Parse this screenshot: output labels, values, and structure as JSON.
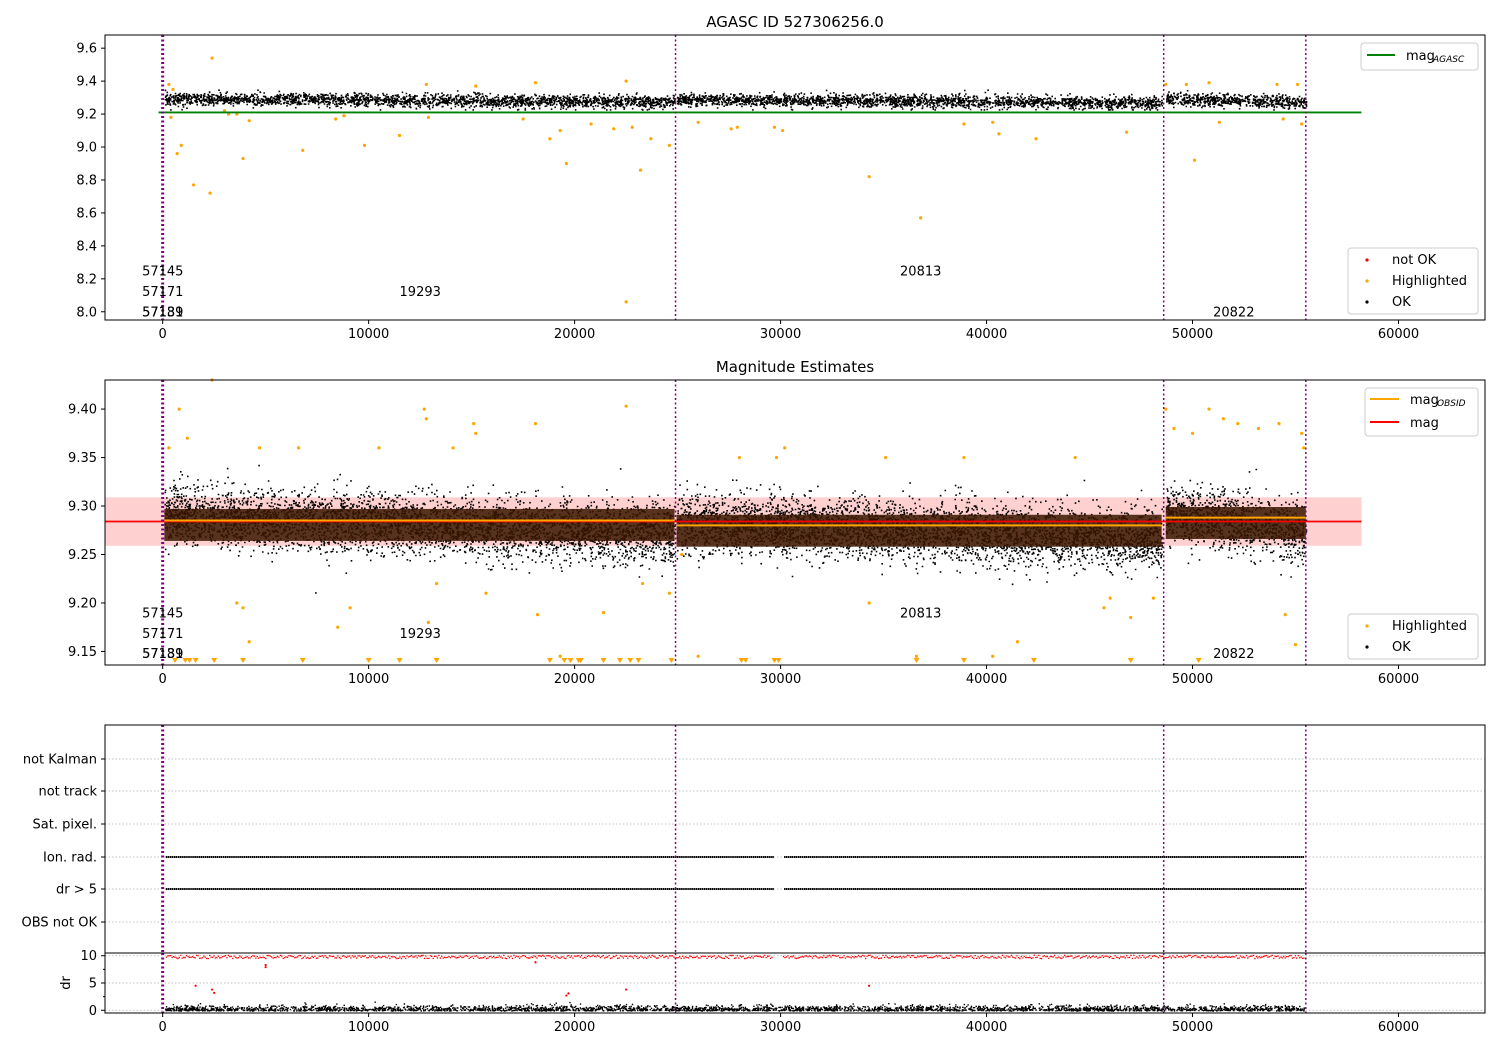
{
  "chart_data": [
    {
      "type": "scatter",
      "title": "AGASC ID 527306256.0",
      "xlabel": "",
      "ylabel": "",
      "xlim": [
        -2800,
        64200
      ],
      "ylim": [
        7.95,
        9.68
      ],
      "grid": false,
      "x_ticks": [
        "0",
        "10000",
        "20000",
        "30000",
        "40000",
        "50000",
        "60000"
      ],
      "x_tick_values": [
        0,
        10000,
        20000,
        30000,
        40000,
        50000,
        60000
      ],
      "y_ticks": [
        "8.0",
        "8.2",
        "8.4",
        "8.6",
        "8.8",
        "9.0",
        "9.2",
        "9.4",
        "9.6"
      ],
      "y_tick_values": [
        8.0,
        8.2,
        8.4,
        8.6,
        8.8,
        9.0,
        9.2,
        9.4,
        9.6
      ],
      "obs_boundaries": [
        0,
        24900,
        48600,
        55500
      ],
      "segments": [
        {
          "x0": 80,
          "x1": 24850,
          "center": 9.29,
          "spread": 0.035
        },
        {
          "x0": 24950,
          "x1": 48500,
          "center": 9.285,
          "spread": 0.035
        },
        {
          "x0": 48700,
          "x1": 55500,
          "center": 9.29,
          "spread": 0.035
        }
      ],
      "series": [
        {
          "name": "mag_AGASC",
          "kind": "line",
          "color": "#008000",
          "y": 9.21,
          "x_range": [
            -200,
            58200
          ]
        },
        {
          "name": "not OK",
          "kind": "points",
          "color": "#ff0000",
          "points": []
        },
        {
          "name": "Highlighted",
          "kind": "points",
          "color": "#ffa500",
          "points": [
            [
              300,
              9.38
            ],
            [
              400,
              9.18
            ],
            [
              500,
              9.35
            ],
            [
              700,
              8.96
            ],
            [
              900,
              9.01
            ],
            [
              1500,
              8.77
            ],
            [
              2300,
              8.72
            ],
            [
              2400,
              9.54
            ],
            [
              3000,
              9.22
            ],
            [
              3200,
              9.2
            ],
            [
              3600,
              9.2
            ],
            [
              3900,
              8.93
            ],
            [
              4200,
              9.16
            ],
            [
              6800,
              8.98
            ],
            [
              8400,
              9.17
            ],
            [
              8800,
              9.19
            ],
            [
              9800,
              9.01
            ],
            [
              11500,
              9.07
            ],
            [
              12800,
              9.38
            ],
            [
              12900,
              9.18
            ],
            [
              15200,
              9.37
            ],
            [
              17500,
              9.17
            ],
            [
              18100,
              9.39
            ],
            [
              18800,
              9.05
            ],
            [
              19300,
              9.1
            ],
            [
              19600,
              8.9
            ],
            [
              20800,
              9.14
            ],
            [
              21900,
              9.11
            ],
            [
              22500,
              9.4
            ],
            [
              22800,
              9.12
            ],
            [
              23200,
              8.86
            ],
            [
              23700,
              9.05
            ],
            [
              24600,
              9.01
            ],
            [
              26000,
              9.15
            ],
            [
              27600,
              9.11
            ],
            [
              27900,
              9.12
            ],
            [
              29700,
              9.12
            ],
            [
              30100,
              9.1
            ],
            [
              34300,
              8.82
            ],
            [
              36800,
              8.57
            ],
            [
              38900,
              9.14
            ],
            [
              40300,
              9.15
            ],
            [
              40600,
              9.08
            ],
            [
              42400,
              9.05
            ],
            [
              46800,
              9.09
            ],
            [
              48700,
              9.38
            ],
            [
              49700,
              9.38
            ],
            [
              50800,
              9.39
            ],
            [
              50100,
              8.92
            ],
            [
              51300,
              9.15
            ],
            [
              54100,
              9.38
            ],
            [
              54400,
              9.17
            ],
            [
              55100,
              9.38
            ],
            [
              55300,
              9.14
            ],
            [
              22500,
              8.06
            ]
          ]
        },
        {
          "name": "OK",
          "kind": "points",
          "color": "#000000",
          "points": []
        }
      ],
      "legend_lines": [
        {
          "label_main": "mag",
          "label_sub": "AGASC",
          "color": "#008000"
        }
      ],
      "legend_points": [
        {
          "label": "not OK",
          "color": "#ff0000"
        },
        {
          "label": "Highlighted",
          "color": "#ffa500"
        },
        {
          "label": "OK",
          "color": "#000000"
        }
      ],
      "annotations": [
        {
          "text": "57145",
          "x": -1000,
          "y": 8.22
        },
        {
          "text": "57171",
          "x": -1000,
          "y": 8.095
        },
        {
          "text": "57139",
          "x": -1000,
          "y": 7.97
        },
        {
          "text": "57181",
          "x": -1000,
          "y": 7.97
        },
        {
          "text": "19293",
          "x": 11500,
          "y": 8.095
        },
        {
          "text": "20813",
          "x": 35800,
          "y": 8.22
        },
        {
          "text": "20822",
          "x": 51000,
          "y": 7.97
        }
      ]
    },
    {
      "type": "scatter",
      "title": "Magnitude Estimates",
      "xlabel": "",
      "ylabel": "",
      "xlim": [
        -2800,
        64200
      ],
      "ylim": [
        9.136,
        9.43
      ],
      "grid": false,
      "x_ticks": [
        "0",
        "10000",
        "20000",
        "30000",
        "40000",
        "50000",
        "60000"
      ],
      "x_tick_values": [
        0,
        10000,
        20000,
        30000,
        40000,
        50000,
        60000
      ],
      "y_ticks": [
        "9.15",
        "9.20",
        "9.25",
        "9.30",
        "9.35",
        "9.40"
      ],
      "y_tick_values": [
        9.15,
        9.2,
        9.25,
        9.3,
        9.35,
        9.4
      ],
      "obs_boundaries": [
        0,
        24900,
        48600,
        55500
      ],
      "band": {
        "y0": 9.259,
        "y1": 9.309,
        "x_range": [
          -2800,
          58200
        ],
        "color": "#ffd0d0"
      },
      "segments": [
        {
          "x0": 80,
          "x1": 24850,
          "center": 9.285,
          "spread": 0.028,
          "mag_obsid": 9.285
        },
        {
          "x0": 24950,
          "x1": 48500,
          "center": 9.279,
          "spread": 0.028,
          "mag_obsid": 9.28
        },
        {
          "x0": 48700,
          "x1": 55500,
          "center": 9.287,
          "spread": 0.028,
          "mag_obsid": 9.288
        }
      ],
      "series": [
        {
          "name": "mag_OBSID",
          "kind": "segments",
          "color": "#ffa500"
        },
        {
          "name": "mag",
          "kind": "line",
          "color": "#ff0000",
          "y": 9.284,
          "x_range": [
            -2800,
            58200
          ]
        },
        {
          "name": "Highlighted",
          "kind": "points",
          "color": "#ffa500",
          "points": [
            [
              300,
              9.36
            ],
            [
              800,
              9.4
            ],
            [
              1200,
              9.37
            ],
            [
              2400,
              9.43
            ],
            [
              3600,
              9.2
            ],
            [
              3900,
              9.195
            ],
            [
              4200,
              9.16
            ],
            [
              4700,
              9.36
            ],
            [
              6600,
              9.36
            ],
            [
              8500,
              9.175
            ],
            [
              9100,
              9.195
            ],
            [
              10500,
              9.36
            ],
            [
              12700,
              9.4
            ],
            [
              12800,
              9.39
            ],
            [
              12900,
              9.18
            ],
            [
              13300,
              9.22
            ],
            [
              14100,
              9.36
            ],
            [
              15100,
              9.385
            ],
            [
              15200,
              9.375
            ],
            [
              15700,
              9.21
            ],
            [
              18100,
              9.385
            ],
            [
              18200,
              9.188
            ],
            [
              19300,
              9.145
            ],
            [
              21400,
              9.19
            ],
            [
              22500,
              9.403
            ],
            [
              23300,
              9.22
            ],
            [
              24600,
              9.21
            ],
            [
              25200,
              9.25
            ],
            [
              26000,
              9.145
            ],
            [
              28000,
              9.35
            ],
            [
              29800,
              9.35
            ],
            [
              30200,
              9.36
            ],
            [
              34300,
              9.2
            ],
            [
              35100,
              9.35
            ],
            [
              36600,
              9.145
            ],
            [
              38900,
              9.35
            ],
            [
              40300,
              9.145
            ],
            [
              41500,
              9.16
            ],
            [
              44300,
              9.35
            ],
            [
              45700,
              9.195
            ],
            [
              46000,
              9.205
            ],
            [
              47000,
              9.185
            ],
            [
              48100,
              9.205
            ],
            [
              48700,
              9.4
            ],
            [
              49100,
              9.38
            ],
            [
              50000,
              9.375
            ],
            [
              50800,
              9.4
            ],
            [
              51500,
              9.39
            ],
            [
              52200,
              9.385
            ],
            [
              53200,
              9.38
            ],
            [
              54200,
              9.385
            ],
            [
              54500,
              9.188
            ],
            [
              55000,
              9.157
            ],
            [
              55300,
              9.375
            ],
            [
              55400,
              9.36
            ]
          ]
        },
        {
          "name": "OK",
          "kind": "points",
          "color": "#000000",
          "points": []
        }
      ],
      "offscale_low": [
        600,
        1100,
        1300,
        1600,
        2500,
        3900,
        6800,
        10000,
        11500,
        13300,
        18800,
        19500,
        19800,
        20200,
        20300,
        21400,
        22200,
        22700,
        23100,
        24700,
        28100,
        28300,
        29700,
        29900,
        36600,
        38900,
        42300,
        47000,
        50300
      ],
      "legend_lines": [
        {
          "label_main": "mag",
          "label_sub": "OBSID",
          "color": "#ffa500"
        },
        {
          "label_main": "mag",
          "label_sub": "",
          "color": "#ff0000"
        }
      ],
      "legend_points": [
        {
          "label": "Highlighted",
          "color": "#ffa500"
        },
        {
          "label": "OK",
          "color": "#000000"
        }
      ],
      "annotations": [
        {
          "text": "57145",
          "x": -1000,
          "y": 9.185
        },
        {
          "text": "57171",
          "x": -1000,
          "y": 9.164
        },
        {
          "text": "57139",
          "x": -1000,
          "y": 9.143
        },
        {
          "text": "57181",
          "x": -1000,
          "y": 9.143
        },
        {
          "text": "19293",
          "x": 11500,
          "y": 9.164
        },
        {
          "text": "20813",
          "x": 35800,
          "y": 9.185
        },
        {
          "text": "20822",
          "x": 51000,
          "y": 9.143
        }
      ]
    },
    {
      "type": "scatter",
      "title": "",
      "xlabel": "",
      "ylabel": "",
      "xlim": [
        -2800,
        64200
      ],
      "grid": true,
      "obs_boundaries": [
        0,
        24900,
        48600,
        55500
      ],
      "flag_rows": [
        "not Kalman",
        "not track",
        "Sat. pixel.",
        "Ion. rad.",
        "dr > 5",
        "OBS not OK"
      ],
      "flag_rows_filled": [
        "Ion. rad.",
        "dr > 5"
      ],
      "gap": [
        29600,
        30100
      ],
      "points": []
    },
    {
      "type": "scatter",
      "title": "",
      "xlabel": "",
      "ylabel": "dr",
      "xlim": [
        -2800,
        64200
      ],
      "ylim": [
        -0.5,
        10.5
      ],
      "grid": true,
      "x_ticks": [
        "0",
        "10000",
        "20000",
        "30000",
        "40000",
        "50000",
        "60000"
      ],
      "x_tick_values": [
        0,
        10000,
        20000,
        30000,
        40000,
        50000,
        60000
      ],
      "y_ticks": [
        "0",
        "5",
        "10"
      ],
      "y_tick_values": [
        0,
        5,
        10
      ],
      "series": [
        {
          "name": "dr > 5",
          "kind": "points",
          "color": "#ff0000",
          "points": [
            [
              1600,
              4.5
            ],
            [
              2400,
              3.8
            ],
            [
              2500,
              3.2
            ],
            [
              5000,
              8.3
            ],
            [
              5000,
              7.9
            ],
            [
              18100,
              8.8
            ],
            [
              19700,
              3.1
            ],
            [
              19600,
              2.7
            ],
            [
              22500,
              3.8
            ],
            [
              34300,
              4.5
            ]
          ]
        },
        {
          "name": "dr",
          "kind": "points",
          "color": "#000000",
          "points": []
        }
      ]
    }
  ]
}
